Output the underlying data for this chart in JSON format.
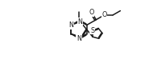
{
  "background_color": "#ffffff",
  "line_color": "#1a1a1a",
  "line_width": 1.1,
  "font_size_atoms": 5.8,
  "fig_width": 1.85,
  "fig_height": 0.74,
  "dpi": 100,
  "xlim": [
    0,
    10
  ],
  "ylim": [
    0,
    4
  ]
}
